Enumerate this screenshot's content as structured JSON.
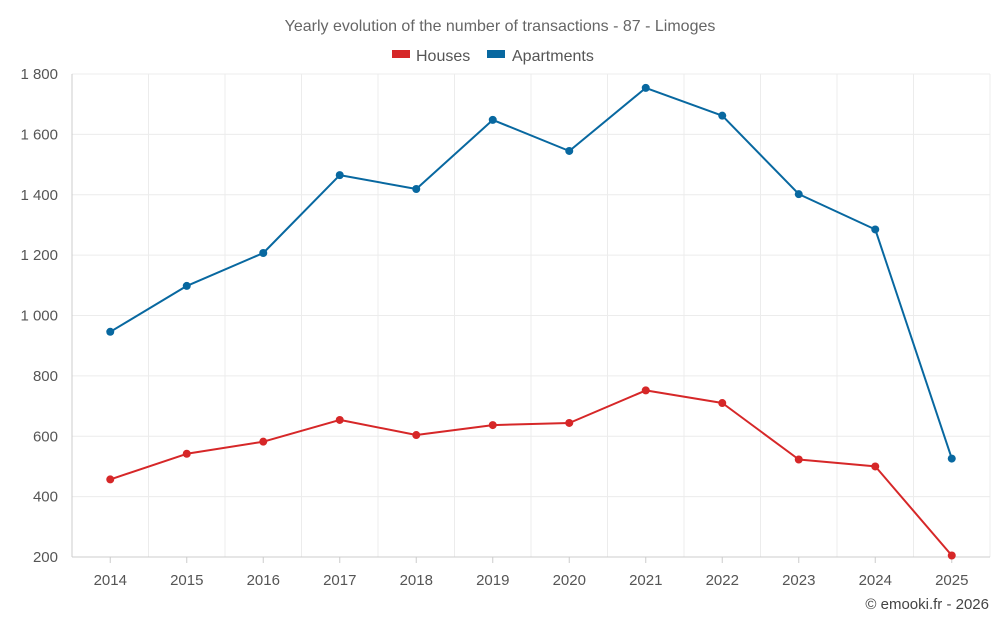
{
  "chart_data": {
    "type": "line",
    "title": "Yearly evolution of the number of transactions - 87 - Limoges",
    "xlabel": "",
    "ylabel": "",
    "categories": [
      "2014",
      "2015",
      "2016",
      "2017",
      "2018",
      "2019",
      "2020",
      "2021",
      "2022",
      "2023",
      "2024",
      "2025"
    ],
    "ylim": [
      200,
      1800
    ],
    "yticks": [
      200,
      400,
      600,
      800,
      1000,
      1200,
      1400,
      1600,
      1800
    ],
    "ytick_labels": [
      "200",
      "400",
      "600",
      "800",
      "1 000",
      "1 200",
      "1 400",
      "1 600",
      "1 800"
    ],
    "grid": true,
    "legend_position": "top-center",
    "series": [
      {
        "name": "Houses",
        "color": "#d62728",
        "values": [
          457,
          542,
          582,
          654,
          604,
          637,
          644,
          752,
          710,
          523,
          500,
          205
        ]
      },
      {
        "name": "Apartments",
        "color": "#0868a0",
        "values": [
          946,
          1098,
          1207,
          1465,
          1419,
          1648,
          1545,
          1754,
          1662,
          1402,
          1285,
          526
        ]
      }
    ]
  },
  "credit": "© emooki.fr - 2026"
}
